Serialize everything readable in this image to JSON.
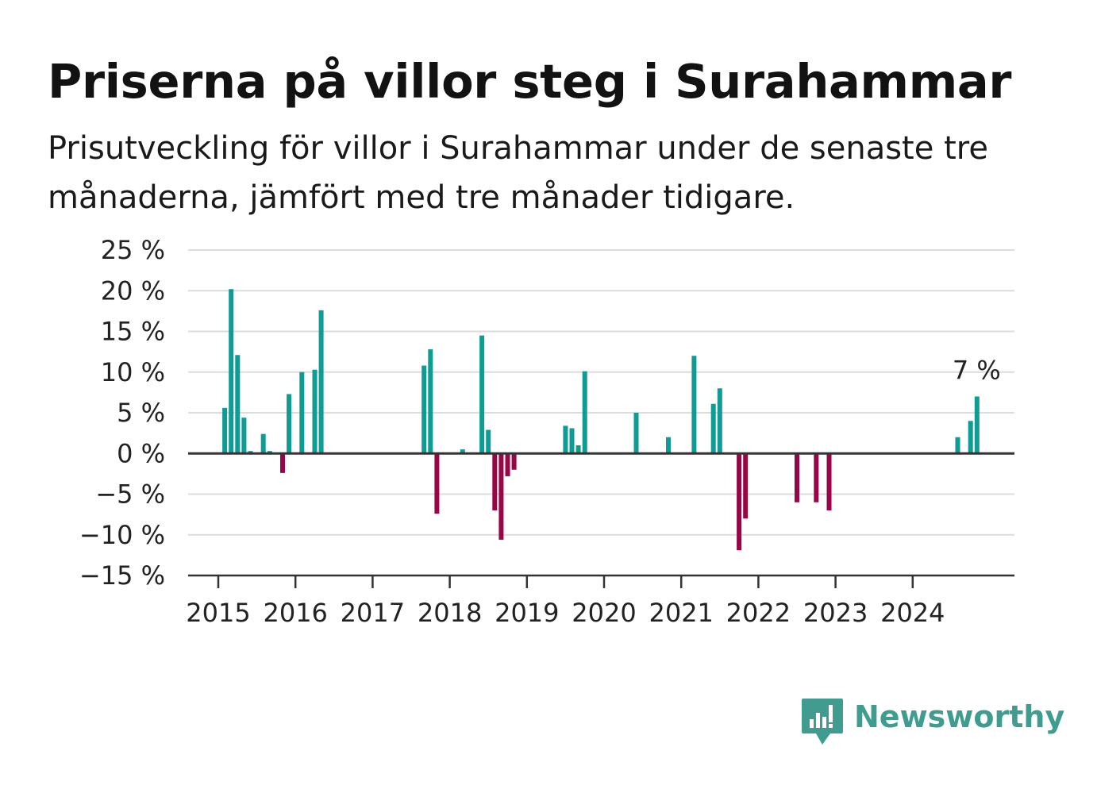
{
  "title": "Priserna på villor steg i Surahammar",
  "subtitle": "Prisutveckling för villor i Surahammar under de senaste tre månaderna, jämfört med tre månader tidigare.",
  "brand": {
    "name": "Newsworthy",
    "logo_icon": "newsworthy-bar-chart-logo-icon",
    "color": "#3f9c8e"
  },
  "colors": {
    "positive": "#0e9c95",
    "negative": "#990546",
    "grid": "#dcdcdc",
    "axis": "#333333",
    "text": "#222222"
  },
  "chart_data": {
    "type": "bar",
    "title": "Priserna på villor steg i Surahammar",
    "subtitle": "Prisutveckling för villor i Surahammar under de senaste tre månaderna, jämfört med tre månader tidigare.",
    "xlabel": "",
    "ylabel": "",
    "unit": "%",
    "x_unit": "month",
    "ylim": [
      -15,
      25
    ],
    "y_ticks": [
      25,
      20,
      15,
      10,
      5,
      0,
      -5,
      -10,
      -15
    ],
    "y_tick_labels": [
      "25 %",
      "20 %",
      "15 %",
      "10 %",
      "5 %",
      "0 %",
      "−5 %",
      "−10 %",
      "−15 %"
    ],
    "x_ticks": [
      "2015",
      "2016",
      "2017",
      "2018",
      "2019",
      "2020",
      "2021",
      "2022",
      "2023",
      "2024"
    ],
    "grid": true,
    "legend": "none",
    "annotation": {
      "label": "7 %",
      "date": "2024-11",
      "value": 7
    },
    "points": [
      {
        "date": "2015-02",
        "value": 5.6
      },
      {
        "date": "2015-03",
        "value": 20.2
      },
      {
        "date": "2015-04",
        "value": 12.1
      },
      {
        "date": "2015-05",
        "value": 4.4
      },
      {
        "date": "2015-06",
        "value": 0.3
      },
      {
        "date": "2015-08",
        "value": 2.4
      },
      {
        "date": "2015-09",
        "value": 0.3
      },
      {
        "date": "2015-11",
        "value": -2.4
      },
      {
        "date": "2015-12",
        "value": 7.3
      },
      {
        "date": "2016-02",
        "value": 10.0
      },
      {
        "date": "2016-04",
        "value": 10.3
      },
      {
        "date": "2016-05",
        "value": 17.6
      },
      {
        "date": "2017-09",
        "value": 10.8
      },
      {
        "date": "2017-10",
        "value": 12.8
      },
      {
        "date": "2017-11",
        "value": -7.4
      },
      {
        "date": "2018-03",
        "value": 0.5
      },
      {
        "date": "2018-06",
        "value": 14.5
      },
      {
        "date": "2018-07",
        "value": 2.9
      },
      {
        "date": "2018-08",
        "value": -7.0
      },
      {
        "date": "2018-09",
        "value": -10.6
      },
      {
        "date": "2018-10",
        "value": -2.8
      },
      {
        "date": "2018-11",
        "value": -2.0
      },
      {
        "date": "2019-07",
        "value": 3.4
      },
      {
        "date": "2019-08",
        "value": 3.1
      },
      {
        "date": "2019-09",
        "value": 1.0
      },
      {
        "date": "2019-10",
        "value": 10.1
      },
      {
        "date": "2020-06",
        "value": 5.0
      },
      {
        "date": "2020-11",
        "value": 2.0
      },
      {
        "date": "2021-03",
        "value": 12.0
      },
      {
        "date": "2021-06",
        "value": 6.1
      },
      {
        "date": "2021-07",
        "value": 8.0
      },
      {
        "date": "2021-10",
        "value": -11.9
      },
      {
        "date": "2021-11",
        "value": -8.0
      },
      {
        "date": "2022-07",
        "value": -6.0
      },
      {
        "date": "2022-10",
        "value": -6.0
      },
      {
        "date": "2022-12",
        "value": -7.0
      },
      {
        "date": "2024-08",
        "value": 2.0
      },
      {
        "date": "2024-10",
        "value": 4.0
      },
      {
        "date": "2024-11",
        "value": 7.0
      }
    ]
  }
}
